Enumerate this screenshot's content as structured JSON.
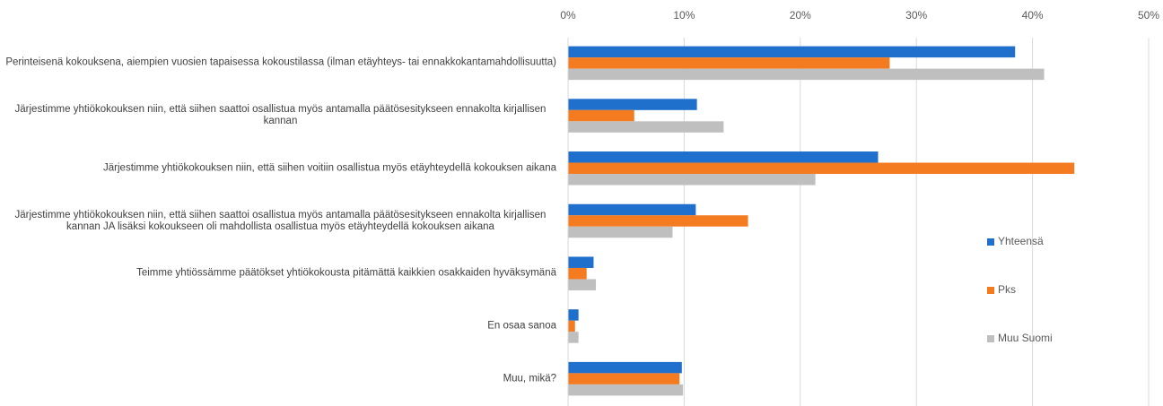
{
  "chart_data": {
    "type": "barh",
    "categories": [
      "Perinteisenä kokouksena, aiempien vuosien tapaisessa kokoustilassa (ilman etäyhteys- tai ennakkokantamahdollisuutta)",
      "Järjestimme yhtiökokouksen niin, että siihen saattoi osallistua myös antamalla päätösesitykseen ennakolta kirjallisen kannan",
      "Järjestimme yhtiökokouksen niin, että siihen voitiin osallistua myös etäyhteydellä kokouksen aikana",
      "Järjestimme yhtiökokouksen niin, että siihen saattoi osallistua myös antamalla päätösesitykseen ennakolta kirjallisen kannan JA lisäksi kokoukseen oli mahdollista osallistua myös etäyhteydellä kokouksen aikana",
      "Teimme yhtiössämme päätökset yhtiökokousta pitämättä kaikkien osakkaiden hyväksymänä",
      "En osaa sanoa",
      "Muu, mikä?"
    ],
    "series": [
      {
        "name": "Yhteensä",
        "color": "#1f6fcc",
        "values": [
          38.5,
          11.1,
          26.7,
          11.0,
          2.2,
          0.9,
          9.8
        ]
      },
      {
        "name": "Pks",
        "color": "#f47b20",
        "values": [
          27.7,
          5.7,
          43.6,
          15.5,
          1.6,
          0.6,
          9.6
        ]
      },
      {
        "name": "Muu Suomi",
        "color": "#bfbfbf",
        "values": [
          41.0,
          13.4,
          21.3,
          9.0,
          2.4,
          0.9,
          9.9
        ]
      }
    ],
    "xlim": [
      0,
      50
    ],
    "xticks": [
      {
        "value": 0,
        "label": "0%"
      },
      {
        "value": 10,
        "label": "10%"
      },
      {
        "value": 20,
        "label": "20%"
      },
      {
        "value": 30,
        "label": "30%"
      },
      {
        "value": 40,
        "label": "40%"
      },
      {
        "value": 50,
        "label": "50%"
      }
    ],
    "grid": true,
    "legend": "right"
  }
}
